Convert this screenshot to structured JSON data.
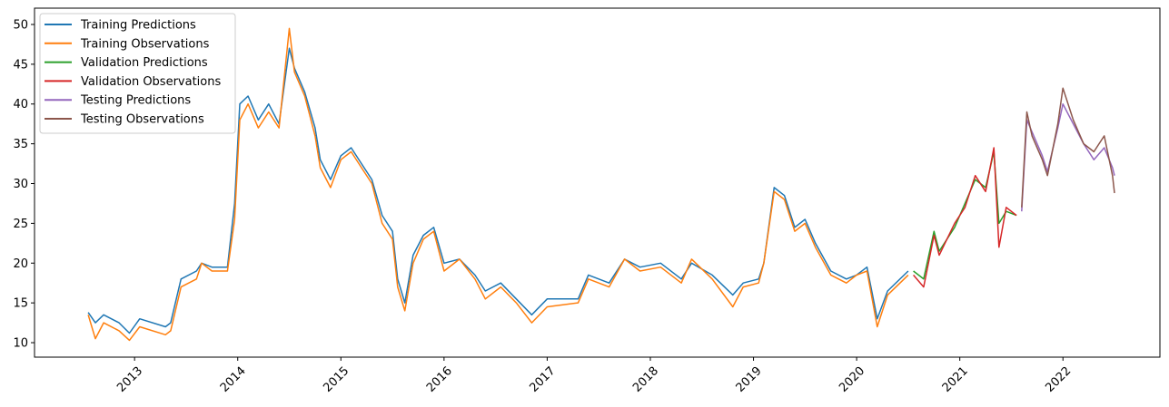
{
  "chart_data": {
    "type": "line",
    "title": "",
    "xlabel": "",
    "ylabel": "",
    "xlim": [
      2012.03,
      2022.94
    ],
    "ylim": [
      8.18,
      52.05
    ],
    "grid": false,
    "legend_position": "top-left",
    "xticks": [
      2013,
      2014,
      2015,
      2016,
      2017,
      2018,
      2019,
      2020,
      2021,
      2022
    ],
    "xtick_labels": [
      "2013",
      "2014",
      "2015",
      "2016",
      "2017",
      "2018",
      "2019",
      "2020",
      "2021",
      "2022"
    ],
    "yticks": [
      10,
      15,
      20,
      25,
      30,
      35,
      40,
      45,
      50
    ],
    "ytick_labels": [
      "10",
      "15",
      "20",
      "25",
      "30",
      "35",
      "40",
      "45",
      "50"
    ],
    "series": [
      {
        "name": "Training Predictions",
        "color": "#1f77b4",
        "x": [
          2012.55,
          2012.62,
          2012.7,
          2012.85,
          2012.95,
          2013.05,
          2013.3,
          2013.35,
          2013.45,
          2013.6,
          2013.65,
          2013.75,
          2013.9,
          2013.97,
          2014.02,
          2014.1,
          2014.2,
          2014.3,
          2014.4,
          2014.5,
          2014.55,
          2014.65,
          2014.75,
          2014.8,
          2014.9,
          2015.0,
          2015.1,
          2015.2,
          2015.3,
          2015.4,
          2015.5,
          2015.55,
          2015.62,
          2015.7,
          2015.8,
          2015.9,
          2016.0,
          2016.15,
          2016.3,
          2016.4,
          2016.55,
          2016.7,
          2016.85,
          2017.0,
          2017.3,
          2017.4,
          2017.6,
          2017.75,
          2017.9,
          2018.1,
          2018.3,
          2018.4,
          2018.6,
          2018.8,
          2018.9,
          2019.05,
          2019.1,
          2019.2,
          2019.3,
          2019.4,
          2019.5,
          2019.6,
          2019.75,
          2019.9,
          2020.0,
          2020.1,
          2020.2,
          2020.3,
          2020.5
        ],
        "y": [
          13.8,
          12.5,
          13.5,
          12.5,
          11.2,
          13,
          12,
          12.5,
          18,
          19,
          20,
          19.5,
          19.5,
          27.5,
          40,
          41,
          38,
          40,
          37.5,
          47,
          44.5,
          41.5,
          37,
          33,
          30.5,
          33.5,
          34.5,
          32.5,
          30.5,
          26,
          24,
          18,
          15,
          21,
          23.5,
          24.5,
          20,
          20.5,
          18.5,
          16.5,
          17.5,
          15.5,
          13.5,
          15.5,
          15.5,
          18.5,
          17.5,
          20.5,
          19.5,
          20,
          18,
          20,
          18.5,
          16,
          17.5,
          18,
          20,
          29.5,
          28.5,
          24.5,
          25.5,
          22.5,
          19,
          18,
          18.5,
          19.5,
          13,
          16.5,
          19
        ]
      },
      {
        "name": "Training Observations",
        "color": "#ff7f0e",
        "x": [
          2012.55,
          2012.62,
          2012.7,
          2012.85,
          2012.95,
          2013.05,
          2013.3,
          2013.35,
          2013.45,
          2013.6,
          2013.65,
          2013.75,
          2013.9,
          2013.97,
          2014.02,
          2014.1,
          2014.2,
          2014.3,
          2014.4,
          2014.5,
          2014.55,
          2014.65,
          2014.75,
          2014.8,
          2014.9,
          2015.0,
          2015.1,
          2015.2,
          2015.3,
          2015.4,
          2015.5,
          2015.55,
          2015.62,
          2015.7,
          2015.8,
          2015.9,
          2016.0,
          2016.15,
          2016.3,
          2016.4,
          2016.55,
          2016.7,
          2016.85,
          2017.0,
          2017.3,
          2017.4,
          2017.6,
          2017.75,
          2017.9,
          2018.1,
          2018.3,
          2018.4,
          2018.6,
          2018.8,
          2018.9,
          2019.05,
          2019.1,
          2019.2,
          2019.3,
          2019.4,
          2019.5,
          2019.6,
          2019.75,
          2019.9,
          2020.0,
          2020.1,
          2020.2,
          2020.3,
          2020.5
        ],
        "y": [
          13.5,
          10.5,
          12.5,
          11.5,
          10.3,
          12,
          11,
          11.5,
          17,
          18,
          20,
          19,
          19,
          25.5,
          38,
          40,
          37,
          39,
          37,
          49.5,
          44,
          41,
          36,
          32,
          29.5,
          33,
          34,
          32,
          30,
          25,
          23,
          17,
          14,
          20,
          23,
          24,
          19,
          20.5,
          18,
          15.5,
          17,
          15,
          12.5,
          14.5,
          15,
          18,
          17,
          20.5,
          19,
          19.5,
          17.5,
          20.5,
          18,
          14.5,
          17,
          17.5,
          20,
          29,
          28,
          24,
          25,
          22,
          18.5,
          17.5,
          18.5,
          19,
          12,
          16,
          18.5
        ]
      },
      {
        "name": "Validation Predictions",
        "color": "#2ca02c",
        "x": [
          2020.55,
          2020.65,
          2020.75,
          2020.8,
          2020.95,
          2021.05,
          2021.15,
          2021.25,
          2021.33,
          2021.38,
          2021.45,
          2021.55
        ],
        "y": [
          19,
          18,
          24,
          21.5,
          24.5,
          27.5,
          30.5,
          29.5,
          34,
          25,
          26.5,
          26
        ]
      },
      {
        "name": "Validation Observations",
        "color": "#d62728",
        "x": [
          2020.55,
          2020.65,
          2020.75,
          2020.8,
          2020.95,
          2021.05,
          2021.15,
          2021.25,
          2021.33,
          2021.38,
          2021.45,
          2021.55
        ],
        "y": [
          18.5,
          17,
          23.5,
          21,
          25,
          27,
          31,
          29,
          34.5,
          22,
          27,
          26
        ]
      },
      {
        "name": "Testing Predictions",
        "color": "#9467bd",
        "x": [
          2021.6,
          2021.65,
          2021.7,
          2021.8,
          2021.85,
          2021.95,
          2022.0,
          2022.1,
          2022.2,
          2022.3,
          2022.4,
          2022.48,
          2022.5
        ],
        "y": [
          26.5,
          38,
          36.5,
          33.5,
          31.5,
          37,
          40,
          37.5,
          35,
          33,
          34.5,
          32,
          31
        ]
      },
      {
        "name": "Testing Observations",
        "color": "#8c564b",
        "x": [
          2021.6,
          2021.65,
          2021.7,
          2021.8,
          2021.85,
          2021.95,
          2022.0,
          2022.1,
          2022.2,
          2022.3,
          2022.4,
          2022.48,
          2022.5
        ],
        "y": [
          27,
          39,
          36,
          33,
          31,
          37.5,
          42,
          38,
          35,
          34,
          36,
          31,
          28.8
        ]
      }
    ]
  }
}
